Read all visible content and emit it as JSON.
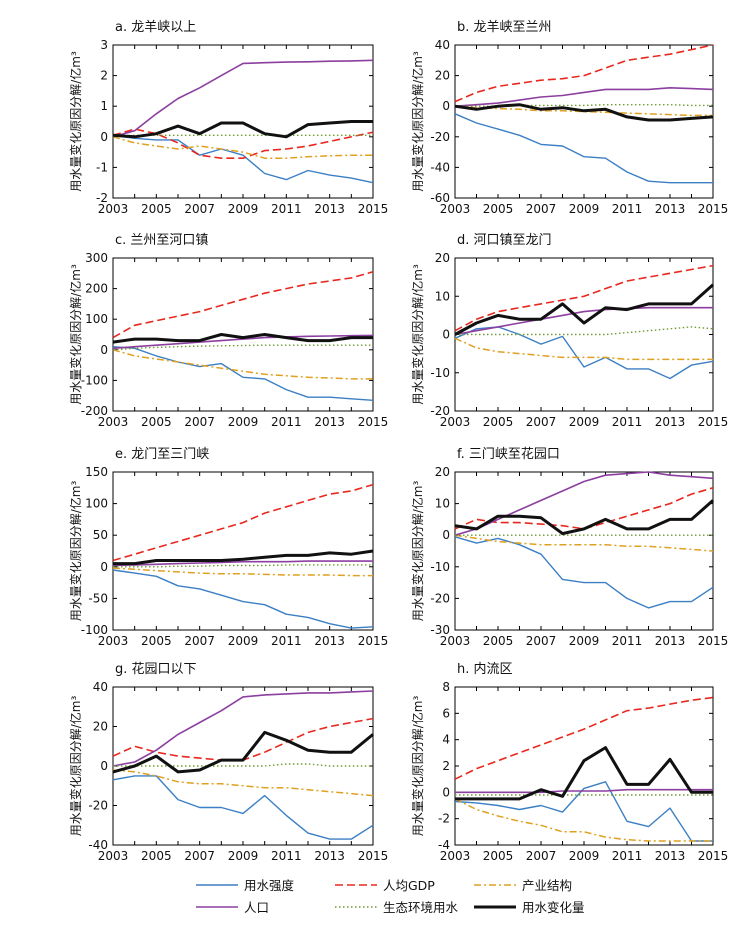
{
  "ylabel": "用水量变化原因分解/亿m³",
  "xticks": [
    "2003",
    "2005",
    "2007",
    "2009",
    "2011",
    "2013",
    "2015"
  ],
  "legend": [
    {
      "label": "用水强度",
      "color": "#3b7fc4",
      "dash": "solid",
      "width": 1.4
    },
    {
      "label": "人均GDP",
      "color": "#e8281f",
      "dash": "8,4",
      "width": 1.6
    },
    {
      "label": "产业结构",
      "color": "#e0a020",
      "dash": "7,3,2,3",
      "width": 1.5
    },
    {
      "label": "人口",
      "color": "#8c3fa0",
      "dash": "solid",
      "width": 1.6
    },
    {
      "label": "生态环境用水",
      "color": "#6f9a30",
      "dash": "1.5,2.5",
      "width": 1.4
    },
    {
      "label": "用水变化量",
      "color": "#111111",
      "dash": "solid",
      "width": 3
    }
  ],
  "chart_data": [
    {
      "type": "line",
      "title": "a. 龙羊峡以上",
      "x": [
        2003,
        2004,
        2005,
        2006,
        2007,
        2008,
        2009,
        2010,
        2011,
        2012,
        2013,
        2014,
        2015
      ],
      "ylim": [
        -2,
        3
      ],
      "yticks": [
        -2,
        -1,
        0,
        1,
        2,
        3
      ],
      "series": [
        {
          "name": "用水强度",
          "values": [
            0.05,
            -0.05,
            -0.1,
            -0.1,
            -0.6,
            -0.4,
            -0.6,
            -1.2,
            -1.4,
            -1.1,
            -1.25,
            -1.35,
            -1.5
          ]
        },
        {
          "name": "人均GDP",
          "values": [
            0.05,
            0.25,
            0.1,
            -0.2,
            -0.6,
            -0.7,
            -0.7,
            -0.45,
            -0.4,
            -0.3,
            -0.15,
            0.0,
            0.15
          ]
        },
        {
          "name": "产业结构",
          "values": [
            0.0,
            -0.2,
            -0.3,
            -0.4,
            -0.3,
            -0.4,
            -0.5,
            -0.7,
            -0.7,
            -0.65,
            -0.62,
            -0.6,
            -0.6
          ]
        },
        {
          "name": "人口",
          "values": [
            0.0,
            0.2,
            0.75,
            1.25,
            1.6,
            2.0,
            2.4,
            2.42,
            2.44,
            2.45,
            2.47,
            2.48,
            2.5
          ]
        },
        {
          "name": "生态环境用水",
          "values": [
            0.0,
            0.05,
            0.05,
            0.05,
            0.05,
            0.05,
            0.05,
            0.05,
            0.05,
            0.05,
            0.05,
            0.05,
            0.05
          ]
        },
        {
          "name": "用水变化量",
          "values": [
            0.05,
            0.0,
            0.1,
            0.35,
            0.1,
            0.45,
            0.45,
            0.1,
            0.0,
            0.4,
            0.45,
            0.5,
            0.5
          ]
        }
      ]
    },
    {
      "type": "line",
      "title": "b. 龙羊峡至兰州",
      "x": [
        2003,
        2004,
        2005,
        2006,
        2007,
        2008,
        2009,
        2010,
        2011,
        2012,
        2013,
        2014,
        2015
      ],
      "ylim": [
        -60,
        40
      ],
      "yticks": [
        -60,
        -40,
        -20,
        0,
        20,
        40
      ],
      "series": [
        {
          "name": "用水强度",
          "values": [
            -5,
            -11,
            -15,
            -19,
            -25,
            -26,
            -33,
            -34,
            -43,
            -49,
            -50,
            -50,
            -50
          ]
        },
        {
          "name": "人均GDP",
          "values": [
            3,
            9,
            13,
            15,
            17,
            18,
            20,
            25,
            30,
            32,
            34,
            37,
            40
          ]
        },
        {
          "name": "产业结构",
          "values": [
            0,
            -1,
            -1.5,
            -2,
            -3,
            -3,
            -3.5,
            -4,
            -4.5,
            -5,
            -5.5,
            -6,
            -6
          ]
        },
        {
          "name": "人口",
          "values": [
            0,
            1,
            2,
            4,
            6,
            7,
            9,
            11,
            11,
            11,
            12,
            11.5,
            11
          ]
        },
        {
          "name": "生态环境用水",
          "values": [
            0,
            0,
            0,
            0.5,
            0.5,
            0.5,
            0.5,
            1,
            1,
            1,
            1,
            0.5,
            0.5
          ]
        },
        {
          "name": "用水变化量",
          "values": [
            0,
            -2,
            0,
            1,
            -2,
            -1,
            -3,
            -2,
            -7,
            -9,
            -9,
            -8,
            -7
          ]
        }
      ]
    },
    {
      "type": "line",
      "title": "c. 兰州至河口镇",
      "x": [
        2003,
        2004,
        2005,
        2006,
        2007,
        2008,
        2009,
        2010,
        2011,
        2012,
        2013,
        2014,
        2015
      ],
      "ylim": [
        -200,
        300
      ],
      "yticks": [
        -200,
        -100,
        0,
        100,
        200,
        300
      ],
      "series": [
        {
          "name": "用水强度",
          "values": [
            10,
            5,
            -20,
            -40,
            -55,
            -45,
            -90,
            -95,
            -130,
            -155,
            -155,
            -160,
            -165
          ]
        },
        {
          "name": "人均GDP",
          "values": [
            40,
            80,
            95,
            110,
            125,
            145,
            165,
            185,
            200,
            215,
            225,
            235,
            255
          ]
        },
        {
          "name": "产业结构",
          "values": [
            0,
            -20,
            -30,
            -40,
            -50,
            -60,
            -70,
            -80,
            -85,
            -90,
            -92,
            -95,
            -95
          ]
        },
        {
          "name": "人口",
          "values": [
            5,
            10,
            15,
            20,
            25,
            30,
            35,
            40,
            42,
            44,
            45,
            46,
            47
          ]
        },
        {
          "name": "生态环境用水",
          "values": [
            0,
            5,
            8,
            10,
            12,
            13,
            14,
            15,
            15,
            15,
            15,
            15,
            15
          ]
        },
        {
          "name": "用水变化量",
          "values": [
            25,
            35,
            35,
            30,
            30,
            50,
            40,
            50,
            40,
            30,
            30,
            40,
            40
          ]
        }
      ]
    },
    {
      "type": "line",
      "title": "d. 河口镇至龙门",
      "x": [
        2003,
        2004,
        2005,
        2006,
        2007,
        2008,
        2009,
        2010,
        2011,
        2012,
        2013,
        2014,
        2015
      ],
      "ylim": [
        -20,
        20
      ],
      "yticks": [
        -20,
        -10,
        0,
        10,
        20
      ],
      "series": [
        {
          "name": "用水强度",
          "values": [
            -1,
            1.5,
            2,
            0,
            -2.5,
            -0.5,
            -8.5,
            -6,
            -9,
            -9,
            -11.5,
            -8,
            -7
          ]
        },
        {
          "name": "人均GDP",
          "values": [
            1,
            4,
            6,
            7,
            8,
            9,
            10,
            12,
            14,
            15,
            16,
            17,
            18
          ]
        },
        {
          "name": "产业结构",
          "values": [
            -1,
            -3.5,
            -4.5,
            -5,
            -5.5,
            -6,
            -6,
            -6,
            -6.5,
            -6.5,
            -6.5,
            -6.5,
            -6.5
          ]
        },
        {
          "name": "人口",
          "values": [
            0,
            1,
            2,
            3,
            4,
            5,
            6,
            6.5,
            6.8,
            7,
            7,
            7,
            7
          ]
        },
        {
          "name": "生态环境用水",
          "values": [
            0,
            0,
            0,
            0,
            0,
            0,
            0,
            0,
            0.5,
            1,
            1.5,
            2,
            1.5
          ]
        },
        {
          "name": "用水变化量",
          "values": [
            0,
            3,
            5,
            4,
            4,
            8,
            3,
            7,
            6.5,
            8,
            8,
            8,
            13
          ]
        }
      ]
    },
    {
      "type": "line",
      "title": "e. 龙门至三门峡",
      "x": [
        2003,
        2004,
        2005,
        2006,
        2007,
        2008,
        2009,
        2010,
        2011,
        2012,
        2013,
        2014,
        2015
      ],
      "ylim": [
        -100,
        150
      ],
      "yticks": [
        -100,
        -50,
        0,
        50,
        100,
        150
      ],
      "series": [
        {
          "name": "用水强度",
          "values": [
            -5,
            -10,
            -15,
            -30,
            -35,
            -45,
            -55,
            -60,
            -75,
            -80,
            -90,
            -97,
            -95
          ]
        },
        {
          "name": "人均GDP",
          "values": [
            10,
            20,
            30,
            40,
            50,
            60,
            70,
            85,
            95,
            105,
            115,
            120,
            130
          ]
        },
        {
          "name": "产业结构",
          "values": [
            -2,
            -4,
            -6,
            -8,
            -10,
            -11,
            -11,
            -12,
            -13,
            -13,
            -13,
            -14,
            -14
          ]
        },
        {
          "name": "人口",
          "values": [
            2,
            3,
            4,
            5,
            6,
            7,
            8,
            8,
            8,
            9,
            9,
            9,
            9
          ]
        },
        {
          "name": "生态环境用水",
          "values": [
            0,
            0,
            0,
            1,
            1,
            2,
            2,
            2,
            3,
            3,
            3,
            3,
            3
          ]
        },
        {
          "name": "用水变化量",
          "values": [
            5,
            5,
            10,
            10,
            10,
            10,
            12,
            15,
            18,
            18,
            22,
            20,
            25
          ]
        }
      ]
    },
    {
      "type": "line",
      "title": "f. 三门峡至花园口",
      "x": [
        2003,
        2004,
        2005,
        2006,
        2007,
        2008,
        2009,
        2010,
        2011,
        2012,
        2013,
        2014,
        2015
      ],
      "ylim": [
        -30,
        20
      ],
      "yticks": [
        -30,
        -20,
        -10,
        0,
        10,
        20
      ],
      "series": [
        {
          "name": "用水强度",
          "values": [
            -0.5,
            -2.5,
            -1,
            -3,
            -6,
            -14,
            -15,
            -15,
            -20,
            -23,
            -21,
            -21,
            -16.5
          ]
        },
        {
          "name": "人均GDP",
          "values": [
            2,
            5,
            4,
            4,
            3.5,
            3,
            2,
            4,
            6,
            8,
            10,
            13,
            15
          ]
        },
        {
          "name": "产业结构",
          "values": [
            0,
            -1,
            -2,
            -2.5,
            -3,
            -3,
            -3,
            -3,
            -3.5,
            -3.5,
            -4,
            -4.5,
            -5
          ]
        },
        {
          "name": "人口",
          "values": [
            0,
            2,
            5,
            8,
            11,
            14,
            17,
            19,
            19.5,
            20,
            19,
            18.5,
            18
          ]
        },
        {
          "name": "生态环境用水",
          "values": [
            0,
            0,
            0,
            0,
            0,
            0,
            0,
            0,
            0,
            0,
            0,
            0,
            0
          ]
        },
        {
          "name": "用水变化量",
          "values": [
            3,
            2,
            6,
            6,
            5.5,
            0.5,
            2,
            5,
            2,
            2,
            5,
            5,
            11
          ]
        }
      ]
    },
    {
      "type": "line",
      "title": "g. 花园口以下",
      "x": [
        2003,
        2004,
        2005,
        2006,
        2007,
        2008,
        2009,
        2010,
        2011,
        2012,
        2013,
        2014,
        2015
      ],
      "ylim": [
        -40,
        40
      ],
      "yticks": [
        -40,
        -20,
        0,
        20,
        40
      ],
      "series": [
        {
          "name": "用水强度",
          "values": [
            -7,
            -5,
            -5,
            -17,
            -21,
            -21,
            -24,
            -15,
            -25,
            -34,
            -37,
            -37,
            -30
          ]
        },
        {
          "name": "人均GDP",
          "values": [
            5,
            10,
            7,
            5,
            4,
            3,
            3,
            7,
            12,
            17,
            20,
            22,
            24
          ]
        },
        {
          "name": "产业结构",
          "values": [
            -2,
            -3,
            -5,
            -8,
            -9,
            -9,
            -10,
            -11,
            -11,
            -12,
            -13,
            -14,
            -15
          ]
        },
        {
          "name": "人口",
          "values": [
            0,
            2,
            8,
            16,
            22,
            28,
            35,
            36,
            36.5,
            37,
            37,
            37.5,
            38
          ]
        },
        {
          "name": "生态环境用水",
          "values": [
            0,
            0,
            0,
            0,
            0,
            0,
            0,
            0,
            1,
            1,
            0,
            0,
            0
          ]
        },
        {
          "name": "用水变化量",
          "values": [
            -3,
            0,
            5,
            -3,
            -2,
            3,
            3,
            17,
            13,
            8,
            7,
            7,
            16
          ]
        }
      ]
    },
    {
      "type": "line",
      "title": "h. 内流区",
      "x": [
        2003,
        2004,
        2005,
        2006,
        2007,
        2008,
        2009,
        2010,
        2011,
        2012,
        2013,
        2014,
        2015
      ],
      "ylim": [
        -4,
        8
      ],
      "yticks": [
        -4,
        -2,
        0,
        2,
        4,
        6,
        8
      ],
      "series": [
        {
          "name": "用水强度",
          "values": [
            -0.7,
            -0.8,
            -1.0,
            -1.3,
            -1.0,
            -1.5,
            0.3,
            0.8,
            -2.2,
            -2.6,
            -1.2,
            -3.7,
            -3.7
          ]
        },
        {
          "name": "人均GDP",
          "values": [
            1,
            1.8,
            2.4,
            3.0,
            3.6,
            4.2,
            4.8,
            5.5,
            6.2,
            6.4,
            6.7,
            7.0,
            7.2
          ]
        },
        {
          "name": "产业结构",
          "values": [
            -0.5,
            -1.3,
            -1.8,
            -2.2,
            -2.5,
            -3.0,
            -3.0,
            -3.4,
            -3.6,
            -3.7,
            -3.7,
            -3.7,
            -3.7
          ]
        },
        {
          "name": "人口",
          "values": [
            0,
            0,
            0,
            0,
            0,
            0.1,
            0.1,
            0.1,
            0.2,
            0.2,
            0.2,
            0.2,
            0.2
          ]
        },
        {
          "name": "生态环境用水",
          "values": [
            -0.2,
            -0.2,
            -0.2,
            -0.2,
            -0.2,
            -0.2,
            -0.2,
            -0.2,
            -0.2,
            -0.2,
            -0.2,
            -0.2,
            -0.2
          ]
        },
        {
          "name": "用水变化量",
          "values": [
            -0.5,
            -0.5,
            -0.5,
            -0.5,
            0.2,
            -0.3,
            2.4,
            3.4,
            0.6,
            0.6,
            2.5,
            0.0,
            0.0
          ]
        }
      ]
    }
  ]
}
